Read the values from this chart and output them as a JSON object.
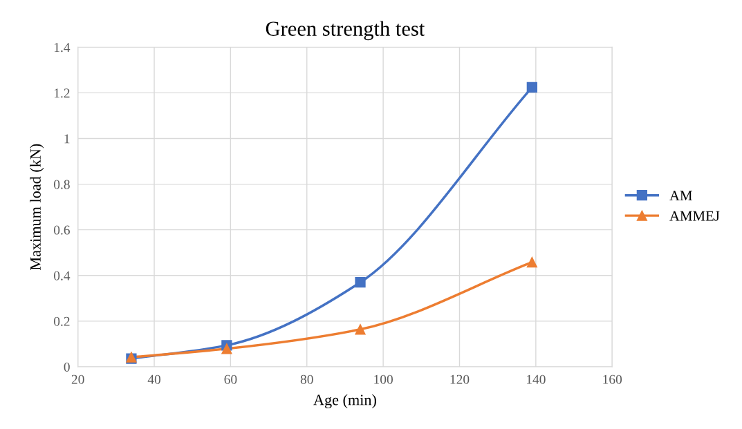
{
  "chart_data": {
    "type": "line",
    "title": "Green strength test",
    "xlabel": "Age (min)",
    "ylabel": "Maximum load (kN)",
    "xlim": [
      20,
      160
    ],
    "xticks": [
      20,
      40,
      60,
      80,
      100,
      120,
      140,
      160
    ],
    "ylim": [
      0,
      1.4
    ],
    "yticks": [
      0,
      0.2,
      0.4,
      0.6,
      0.8,
      1,
      1.2,
      1.4
    ],
    "grid": true,
    "legend": "right",
    "series": [
      {
        "name": "AM",
        "color": "#4472c4",
        "marker": "square",
        "x": [
          34,
          59,
          94,
          139
        ],
        "values": [
          0.036,
          0.094,
          0.37,
          1.224
        ]
      },
      {
        "name": "AMMEJ",
        "color": "#ed7d31",
        "marker": "triangle",
        "x": [
          34,
          59,
          94,
          139
        ],
        "values": [
          0.042,
          0.079,
          0.164,
          0.458
        ]
      }
    ]
  }
}
